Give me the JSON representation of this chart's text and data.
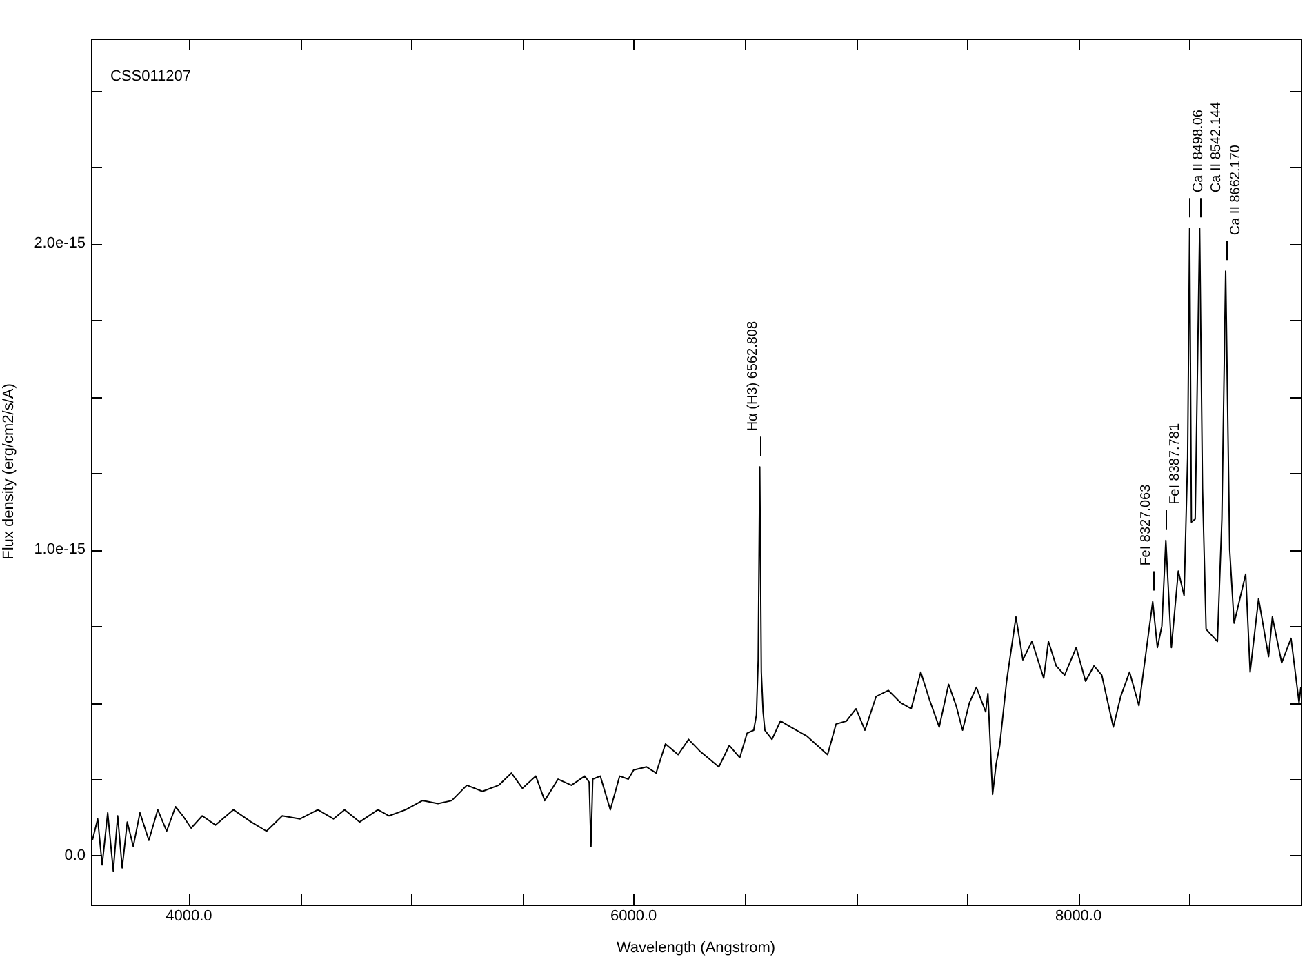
{
  "chart_data": {
    "type": "line",
    "xlabel": "Wavelength (Angstrom)",
    "ylabel": "Flux density (erg/cm2/s/A)",
    "xlim": [
      3560,
      9000
    ],
    "ylim": [
      -1.6e-16,
      2.67e-15
    ],
    "xticks": [
      {
        "value": 4000,
        "label": "4000.0"
      },
      {
        "value": 4500,
        "label": null
      },
      {
        "value": 5000,
        "label": null
      },
      {
        "value": 5500,
        "label": null
      },
      {
        "value": 6000,
        "label": "6000.0"
      },
      {
        "value": 6500,
        "label": null
      },
      {
        "value": 7000,
        "label": null
      },
      {
        "value": 7500,
        "label": null
      },
      {
        "value": 8000,
        "label": "8000.0"
      },
      {
        "value": 8500,
        "label": null
      }
    ],
    "yticks": [
      {
        "value": 0,
        "label": "0.0"
      },
      {
        "value": 2.5e-16,
        "label": null
      },
      {
        "value": 5e-16,
        "label": null
      },
      {
        "value": 7.5e-16,
        "label": null
      },
      {
        "value": 1e-15,
        "label": "1.0e-15"
      },
      {
        "value": 1.25e-15,
        "label": null
      },
      {
        "value": 1.5e-15,
        "label": null
      },
      {
        "value": 1.75e-15,
        "label": null
      },
      {
        "value": 2e-15,
        "label": "2.0e-15"
      },
      {
        "value": 2.25e-15,
        "label": null
      },
      {
        "value": 2.5e-15,
        "label": null
      }
    ],
    "grid": false,
    "legend": false,
    "marker": "none",
    "line_style": "solid",
    "series": [
      {
        "color": "#000000",
        "x": [
          3566,
          3590,
          3610,
          3635,
          3660,
          3680,
          3700,
          3723,
          3750,
          3780,
          3820,
          3860,
          3900,
          3940,
          3973,
          4010,
          4060,
          4120,
          4200,
          4280,
          4349,
          4420,
          4500,
          4580,
          4650,
          4700,
          4768,
          4850,
          4900,
          4975,
          5050,
          5120,
          5182,
          5250,
          5320,
          5393,
          5450,
          5500,
          5560,
          5600,
          5660,
          5720,
          5780,
          5800,
          5808,
          5816,
          5850,
          5895,
          5937,
          5976,
          6000,
          6058,
          6101,
          6143,
          6200,
          6247,
          6300,
          6383,
          6430,
          6477,
          6510,
          6540,
          6552,
          6560,
          6567,
          6574,
          6582,
          6590,
          6622,
          6660,
          6707,
          6780,
          6872,
          6910,
          6957,
          7000,
          7040,
          7090,
          7145,
          7200,
          7248,
          7291,
          7330,
          7374,
          7416,
          7450,
          7479,
          7510,
          7541,
          7583,
          7593,
          7614,
          7630,
          7646,
          7677,
          7719,
          7750,
          7791,
          7844,
          7865,
          7900,
          7938,
          7990,
          8032,
          8070,
          8105,
          8157,
          8190,
          8230,
          8272,
          8303,
          8334,
          8355,
          8375,
          8393,
          8418,
          8449,
          8475,
          8491,
          8500,
          8508,
          8525,
          8545,
          8558,
          8574,
          8625,
          8645,
          8662,
          8680,
          8700,
          8752,
          8772,
          8810,
          8855,
          8872,
          8914,
          8956,
          8992,
          9000
        ],
        "values": [
          5e-17,
          1.2e-16,
          -3e-17,
          1.4e-16,
          -5e-17,
          1.3e-16,
          -4e-17,
          1.1e-16,
          3e-17,
          1.4e-16,
          5e-17,
          1.5e-16,
          8e-17,
          1.6e-16,
          1.3e-16,
          9e-17,
          1.3e-16,
          1e-16,
          1.5e-16,
          1.1e-16,
          8e-17,
          1.3e-16,
          1.2e-16,
          1.5e-16,
          1.2e-16,
          1.5e-16,
          1.1e-16,
          1.5e-16,
          1.3e-16,
          1.5e-16,
          1.8e-16,
          1.7e-16,
          1.8e-16,
          2.3e-16,
          2.1e-16,
          2.3e-16,
          2.7e-16,
          2.2e-16,
          2.6e-16,
          1.8e-16,
          2.5e-16,
          2.3e-16,
          2.6e-16,
          2.4e-16,
          3e-17,
          2.5e-16,
          2.6e-16,
          1.5e-16,
          2.6e-16,
          2.5e-16,
          2.8e-16,
          2.9e-16,
          2.7e-16,
          3.65e-16,
          3.3e-16,
          3.8e-16,
          3.4e-16,
          2.9e-16,
          3.6e-16,
          3.2e-16,
          4e-16,
          4.1e-16,
          4.6e-16,
          6.4e-16,
          1.27e-15,
          6e-16,
          4.7e-16,
          4.1e-16,
          3.8e-16,
          4.4e-16,
          4.2e-16,
          3.9e-16,
          3.3e-16,
          4.3e-16,
          4.4e-16,
          4.8e-16,
          4.1e-16,
          5.2e-16,
          5.4e-16,
          5e-16,
          4.8e-16,
          6e-16,
          5.1e-16,
          4.2e-16,
          5.6e-16,
          4.9e-16,
          4.1e-16,
          5e-16,
          5.5e-16,
          4.7e-16,
          5.3e-16,
          2e-16,
          3e-16,
          3.6e-16,
          5.7e-16,
          7.8e-16,
          6.4e-16,
          7e-16,
          5.8e-16,
          7e-16,
          6.2e-16,
          5.9e-16,
          6.8e-16,
          5.7e-16,
          6.2e-16,
          5.9e-16,
          4.2e-16,
          5.2e-16,
          6e-16,
          4.9e-16,
          6.6e-16,
          8.3e-16,
          6.8e-16,
          7.5e-16,
          1.03e-15,
          6.8e-16,
          9.3e-16,
          8.5e-16,
          1.3e-15,
          2.05e-15,
          1.09e-15,
          1.1e-15,
          2.05e-15,
          1.2e-15,
          7.4e-16,
          7e-16,
          1.1e-15,
          1.91e-15,
          1e-15,
          7.6e-16,
          9.2e-16,
          6e-16,
          8.4e-16,
          6.5e-16,
          7.8e-16,
          6.3e-16,
          7.1e-16,
          5e-16,
          5.5e-16
        ]
      }
    ],
    "annotations": [
      "CSS011207",
      {
        "text": "Hα (H3) 6562.808",
        "x": 6567,
        "y": 1.27e-15
      },
      {
        "text": "FeI 8327.063",
        "x": 8334,
        "y": 8.3e-16
      },
      {
        "text": "FeI 8387.781",
        "x": 8393,
        "y": 1.03e-15
      },
      {
        "text": "Ca II 8498.06",
        "x": 8500,
        "y": 2.05e-15
      },
      {
        "text": "Ca II 8542.144",
        "x": 8545,
        "y": 2.05e-15
      },
      {
        "text": "Ca II 8662.170",
        "x": 8662,
        "y": 1.91e-15
      }
    ]
  }
}
